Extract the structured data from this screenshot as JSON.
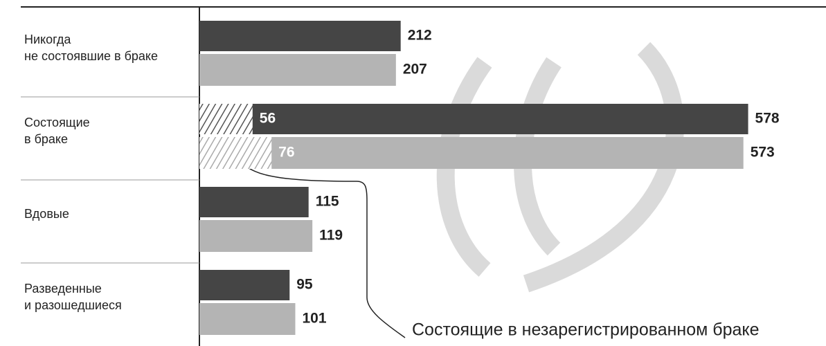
{
  "chart_data": {
    "type": "bar",
    "orientation": "horizontal",
    "categories": [
      "Никогда\nне состоявшие в браке",
      "Состоящие\nв браке",
      "Вдовые",
      "Разведенные\nи разошедшиеся"
    ],
    "series": [
      {
        "color": "#454545",
        "values": [
          212,
          578,
          115,
          95
        ],
        "unregistered": [
          null,
          56,
          null,
          null
        ]
      },
      {
        "color": "#b4b4b4",
        "values": [
          207,
          573,
          119,
          101
        ],
        "unregistered": [
          null,
          76,
          null,
          null
        ]
      }
    ],
    "annotation": "Состоящие в незарегистрированном браке",
    "xlim": [
      0,
      660
    ]
  }
}
